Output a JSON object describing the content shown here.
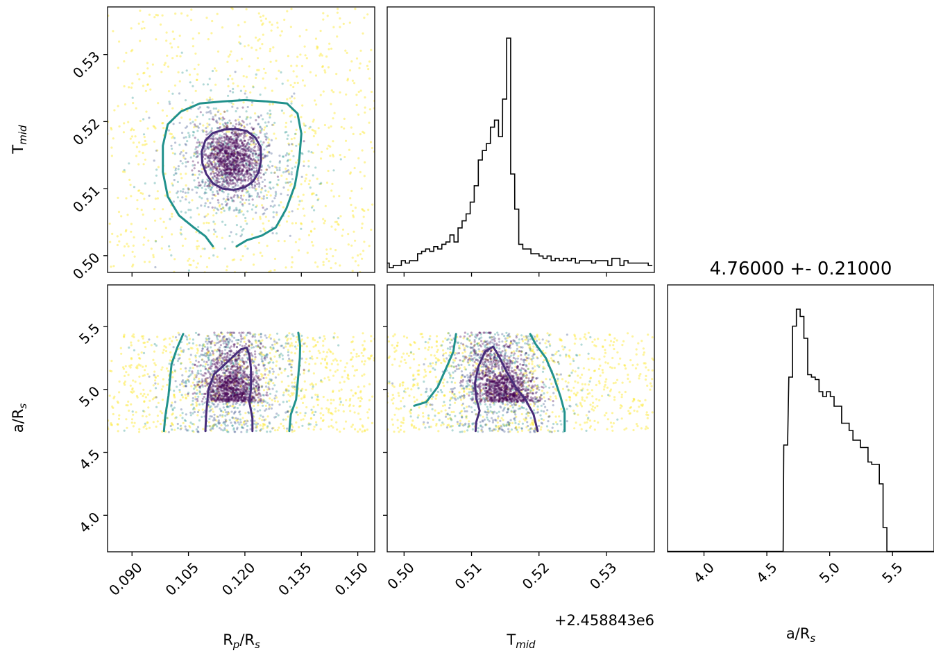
{
  "chart_data": {
    "type": "scatter",
    "kind": "corner-plot",
    "colormap": "viridis",
    "colors": {
      "inner_contour": "#472c7a",
      "outer_contour": "#21918c",
      "histogram": "#000000"
    },
    "parameters": [
      {
        "key": "rp",
        "label_main": "R",
        "label_sub": "p",
        "label_rest": "/R",
        "label_sub2": "s",
        "range": [
          0.0835,
          0.1545
        ],
        "ticks": [
          0.09,
          0.105,
          0.12,
          0.135,
          0.15
        ],
        "tick_labels": [
          "0.090",
          "0.105",
          "0.120",
          "0.135",
          "0.150"
        ]
      },
      {
        "key": "tmid",
        "label_main": "T",
        "label_sub": "mid",
        "label_rest": "",
        "label_sub2": "",
        "range": [
          0.4975,
          0.5371
        ],
        "ticks": [
          0.5,
          0.51,
          0.52,
          0.53
        ],
        "tick_labels": [
          "0.50",
          "0.51",
          "0.52",
          "0.53"
        ],
        "offset_text": "+2.458843e6"
      },
      {
        "key": "ars",
        "label_main": "a/R",
        "label_sub": "s",
        "label_rest": "",
        "label_sub2": "",
        "range": [
          3.71,
          5.83
        ],
        "ticks": [
          4.0,
          4.5,
          5.0,
          5.5
        ],
        "tick_labels": [
          "4.0",
          "4.5",
          "5.0",
          "5.5"
        ],
        "histogram_x": [
          4.65,
          4.69,
          4.72,
          4.75,
          4.78,
          4.81,
          4.84,
          4.87,
          4.9,
          4.93,
          4.96,
          4.99,
          5.02,
          5.05,
          5.08,
          5.11,
          5.14,
          5.17,
          5.2,
          5.23,
          5.26,
          5.29,
          5.32,
          5.35,
          5.38,
          5.41,
          5.44
        ],
        "histogram_y": [
          0.44,
          0.72,
          0.93,
          1.0,
          0.97,
          0.88,
          0.73,
          0.72,
          0.71,
          0.66,
          0.64,
          0.66,
          0.64,
          0.6,
          0.6,
          0.53,
          0.53,
          0.5,
          0.46,
          0.46,
          0.43,
          0.43,
          0.37,
          0.36,
          0.36,
          0.28,
          0.1
        ]
      }
    ],
    "tmid_histogram": {
      "x": [
        0.4975,
        0.4981,
        0.4987,
        0.4993,
        0.4999,
        0.5005,
        0.5011,
        0.5017,
        0.5023,
        0.5029,
        0.5035,
        0.5041,
        0.5047,
        0.5053,
        0.5059,
        0.5065,
        0.5071,
        0.5077,
        0.5083,
        0.5089,
        0.5095,
        0.5101,
        0.5107,
        0.5113,
        0.5119,
        0.5125,
        0.5131,
        0.5137,
        0.5143,
        0.5149,
        0.5155,
        0.5161,
        0.5167,
        0.5173,
        0.5179,
        0.5185,
        0.5191,
        0.5197,
        0.5203,
        0.5209,
        0.5215,
        0.5221,
        0.5227,
        0.5233,
        0.5239,
        0.5245,
        0.5251,
        0.5257,
        0.5263,
        0.5269,
        0.5275,
        0.5281,
        0.5287,
        0.5293,
        0.5299,
        0.5305,
        0.5311,
        0.5317,
        0.5323,
        0.5329,
        0.5335,
        0.5341,
        0.5347,
        0.5353,
        0.5359,
        0.5365
      ],
      "y": [
        0.04,
        0.02,
        0.03,
        0.03,
        0.05,
        0.04,
        0.05,
        0.05,
        0.08,
        0.09,
        0.1,
        0.09,
        0.11,
        0.1,
        0.12,
        0.13,
        0.16,
        0.13,
        0.19,
        0.22,
        0.25,
        0.3,
        0.37,
        0.48,
        0.52,
        0.55,
        0.62,
        0.65,
        0.58,
        0.74,
        1.0,
        0.42,
        0.27,
        0.12,
        0.1,
        0.1,
        0.08,
        0.08,
        0.07,
        0.06,
        0.07,
        0.05,
        0.06,
        0.05,
        0.06,
        0.05,
        0.06,
        0.04,
        0.05,
        0.05,
        0.05,
        0.04,
        0.05,
        0.05,
        0.05,
        0.03,
        0.06,
        0.06,
        0.03,
        0.05,
        0.04,
        0.04,
        0.04,
        0.04,
        0.04,
        0.03
      ]
    },
    "titles": {
      "ars": "4.76000 +- 0.21000"
    },
    "contours": {
      "rp_tmid": {
        "inner": [
          [
            0.1085,
            0.5155
          ],
          [
            0.1095,
            0.5172
          ],
          [
            0.1115,
            0.5183
          ],
          [
            0.1145,
            0.5188
          ],
          [
            0.1175,
            0.5189
          ],
          [
            0.1205,
            0.5186
          ],
          [
            0.1228,
            0.5176
          ],
          [
            0.1242,
            0.5162
          ],
          [
            0.1243,
            0.5142
          ],
          [
            0.1237,
            0.5125
          ],
          [
            0.1222,
            0.5111
          ],
          [
            0.12,
            0.5102
          ],
          [
            0.117,
            0.5098
          ],
          [
            0.114,
            0.51
          ],
          [
            0.1115,
            0.5108
          ],
          [
            0.1097,
            0.5122
          ],
          [
            0.1087,
            0.5138
          ],
          [
            0.1085,
            0.5155
          ]
        ],
        "outer": [
          [
            0.1115,
            0.5014
          ],
          [
            0.1095,
            0.5029
          ],
          [
            0.106,
            0.5044
          ],
          [
            0.1025,
            0.506
          ],
          [
            0.0995,
            0.5088
          ],
          [
            0.0982,
            0.5125
          ],
          [
            0.0982,
            0.5164
          ],
          [
            0.0995,
            0.5196
          ],
          [
            0.103,
            0.5215
          ],
          [
            0.108,
            0.5227
          ],
          [
            0.114,
            0.523
          ],
          [
            0.12,
            0.5232
          ],
          [
            0.126,
            0.523
          ],
          [
            0.1312,
            0.5227
          ],
          [
            0.134,
            0.5212
          ],
          [
            0.135,
            0.5182
          ],
          [
            0.1344,
            0.514
          ],
          [
            0.1333,
            0.5105
          ],
          [
            0.131,
            0.507
          ],
          [
            0.1282,
            0.5042
          ],
          [
            0.1245,
            0.503
          ],
          [
            0.1205,
            0.5023
          ],
          [
            0.1178,
            0.5014
          ]
        ]
      },
      "rp_ars": {
        "inner": [
          [
            0.1095,
            4.67
          ],
          [
            0.1097,
            4.8
          ],
          [
            0.1103,
            5.0
          ],
          [
            0.1118,
            5.12
          ],
          [
            0.114,
            5.18
          ],
          [
            0.1165,
            5.25
          ],
          [
            0.119,
            5.32
          ],
          [
            0.1205,
            5.33
          ],
          [
            0.1212,
            5.27
          ],
          [
            0.1216,
            5.17
          ],
          [
            0.1216,
            5.0
          ],
          [
            0.1212,
            4.9
          ],
          [
            0.122,
            4.77
          ],
          [
            0.122,
            4.67
          ]
        ],
        "outer_left": [
          [
            0.0985,
            4.67
          ],
          [
            0.0988,
            4.78
          ],
          [
            0.0997,
            4.95
          ],
          [
            0.1,
            5.05
          ],
          [
            0.1005,
            5.2
          ],
          [
            0.102,
            5.33
          ],
          [
            0.1036,
            5.44
          ]
        ],
        "outer_right": [
          [
            0.1318,
            4.67
          ],
          [
            0.1322,
            4.8
          ],
          [
            0.1336,
            4.92
          ],
          [
            0.1341,
            5.08
          ],
          [
            0.1346,
            5.25
          ],
          [
            0.1347,
            5.35
          ],
          [
            0.1342,
            5.45
          ]
        ]
      },
      "tmid_ars": {
        "inner": [
          [
            0.5106,
            4.67
          ],
          [
            0.5107,
            4.74
          ],
          [
            0.5112,
            4.83
          ],
          [
            0.5107,
            4.93
          ],
          [
            0.5105,
            5.05
          ],
          [
            0.511,
            5.18
          ],
          [
            0.512,
            5.3
          ],
          [
            0.5132,
            5.34
          ],
          [
            0.514,
            5.27
          ],
          [
            0.5152,
            5.14
          ],
          [
            0.5165,
            5.02
          ],
          [
            0.518,
            4.92
          ],
          [
            0.5192,
            4.8
          ],
          [
            0.5198,
            4.67
          ]
        ],
        "outer_left": [
          [
            0.5015,
            4.87
          ],
          [
            0.5033,
            4.9
          ],
          [
            0.505,
            5.02
          ],
          [
            0.5065,
            5.2
          ],
          [
            0.5073,
            5.3
          ],
          [
            0.5077,
            5.44
          ]
        ],
        "outer_right": [
          [
            0.5238,
            4.67
          ],
          [
            0.5238,
            4.82
          ],
          [
            0.5232,
            4.94
          ],
          [
            0.5222,
            5.1
          ],
          [
            0.521,
            5.25
          ],
          [
            0.5195,
            5.36
          ],
          [
            0.5187,
            5.44
          ]
        ]
      }
    }
  }
}
